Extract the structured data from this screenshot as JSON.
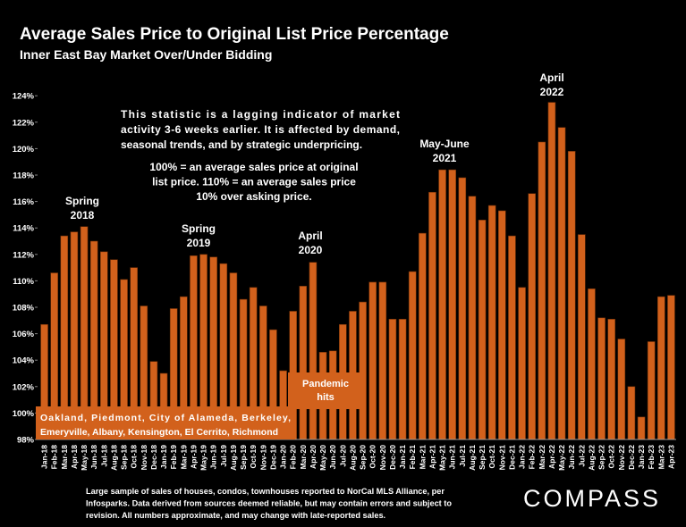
{
  "chart_data": {
    "type": "bar",
    "title": "Average Sales Price to Original List Price Percentage",
    "subtitle": "Inner East Bay Market Over/Under Bidding",
    "categories": [
      "Jan-18",
      "Feb-18",
      "Mar-18",
      "Apr-18",
      "May-18",
      "Jun-18",
      "Jul-18",
      "Aug-18",
      "Sep-18",
      "Oct-18",
      "Nov-18",
      "Dec-18",
      "Jan-19",
      "Feb-19",
      "Mar-19",
      "Apr-19",
      "May-19",
      "Jun-19",
      "Jul-19",
      "Aug-19",
      "Sep-19",
      "Oct-19",
      "Nov-19",
      "Dec-19",
      "Jan-20",
      "Feb-20",
      "Mar-20",
      "Apr-20",
      "May-20",
      "Jun-20",
      "Jul-20",
      "Aug-20",
      "Sep-20",
      "Oct-20",
      "Nov-20",
      "Dec-20",
      "Jan-21",
      "Feb-21",
      "Mar-21",
      "Apr-21",
      "May-21",
      "Jun-21",
      "Jul-21",
      "Aug-21",
      "Sep-21",
      "Oct-21",
      "Nov-21",
      "Dec-21",
      "Jan-22",
      "Feb-22",
      "Mar-22",
      "Apr-22",
      "May-22",
      "Jun-22",
      "Jul-22",
      "Aug-22",
      "Sep-22",
      "Oct-22",
      "Nov-22",
      "Dec-22",
      "Jan-23",
      "Feb-23",
      "Mar-23",
      "Apr-23"
    ],
    "values": [
      106.7,
      110.6,
      113.4,
      113.7,
      114.1,
      113.0,
      112.2,
      111.6,
      110.1,
      111.0,
      108.1,
      103.9,
      103.0,
      107.9,
      108.8,
      111.9,
      112.0,
      111.8,
      111.3,
      110.6,
      108.6,
      109.5,
      108.1,
      106.3,
      103.2,
      107.7,
      109.6,
      111.4,
      104.6,
      104.7,
      106.7,
      107.7,
      108.4,
      109.9,
      109.9,
      107.1,
      107.1,
      110.7,
      113.6,
      116.7,
      118.4,
      118.4,
      117.8,
      116.4,
      114.6,
      115.7,
      115.3,
      113.4,
      109.5,
      116.6,
      120.5,
      123.5,
      121.6,
      119.8,
      113.5,
      109.4,
      107.2,
      107.1,
      105.6,
      102.0,
      99.7,
      105.4,
      108.8,
      108.9
    ],
    "color": "#d2611c",
    "ylim": [
      98,
      125
    ],
    "yticks": [
      {
        "value": 98,
        "label": "98%"
      },
      {
        "value": 100,
        "label": "100%"
      },
      {
        "value": 102,
        "label": "102%"
      },
      {
        "value": 104,
        "label": "104%"
      },
      {
        "value": 106,
        "label": "106%"
      },
      {
        "value": 108,
        "label": "108%"
      },
      {
        "value": 110,
        "label": "110%"
      },
      {
        "value": 112,
        "label": "112%"
      },
      {
        "value": 114,
        "label": "114%"
      },
      {
        "value": 116,
        "label": "116%"
      },
      {
        "value": 118,
        "label": "118%"
      },
      {
        "value": 120,
        "label": "120%"
      },
      {
        "value": 122,
        "label": "122%"
      },
      {
        "value": 124,
        "label": "124%"
      }
    ],
    "grid": false,
    "annotations": [
      [
        "Spring",
        "2018"
      ],
      [
        "Spring",
        "2019"
      ],
      [
        "April",
        "2020"
      ],
      [
        "May-June",
        "2021"
      ],
      [
        "April",
        "2022"
      ]
    ],
    "note": [
      [
        "This statistic is a lagging indicator of market",
        "activity 3-6 weeks earlier. It is affected by demand,",
        "seasonal trends, and by strategic underpricing."
      ],
      [
        "100% = an average sales price at original",
        "list price. 110% = an average sales price",
        "10% over asking price."
      ]
    ],
    "box_cities": [
      "Oakland, Piedmont, City of Alameda, Berkeley,",
      "Emeryville, Albany, Kensington, El Cerrito, Richmond"
    ],
    "box_pandemic": [
      "Pandemic",
      "hits"
    ],
    "footnote": [
      "Large sample of sales of houses, condos, townhouses reported to NorCal MLS Alliance, per",
      "Infosparks. Data derived from sources deemed reliable, but may contain errors and subject to",
      "revision. All numbers approximate, and may change with late-reported sales."
    ],
    "logo": "COMPASS"
  }
}
